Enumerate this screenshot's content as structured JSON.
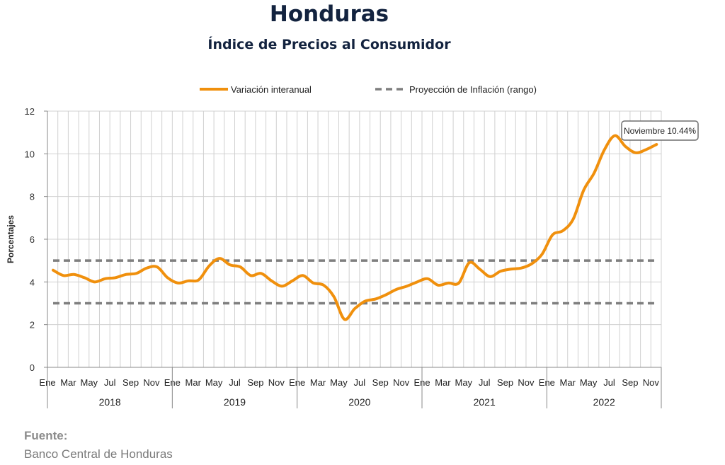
{
  "header": {
    "title": "Honduras",
    "subtitle": "Índice de Precios al Consumidor"
  },
  "source": {
    "label": "Fuente:",
    "text": "Banco Central de Honduras"
  },
  "colors": {
    "series": "#f0900d",
    "projection": "#7f7f7f",
    "grid": "#d0d0d0",
    "title": "#13233f"
  },
  "chart_data": {
    "type": "line",
    "ylabel": "Porcentajes",
    "ylim": [
      0,
      12
    ],
    "yticks": [
      0,
      2,
      4,
      6,
      8,
      10,
      12
    ],
    "grid": true,
    "legend_position": "top",
    "month_labels": [
      "Ene",
      "Mar",
      "May",
      "Jul",
      "Sep",
      "Nov"
    ],
    "years": [
      "2018",
      "2019",
      "2020",
      "2021",
      "2022"
    ],
    "series": [
      {
        "name": "Variación interanual",
        "color": "#f0900d",
        "values": [
          4.55,
          4.3,
          4.35,
          4.2,
          4.0,
          4.15,
          4.2,
          4.35,
          4.4,
          4.65,
          4.7,
          4.2,
          3.95,
          4.05,
          4.1,
          4.75,
          5.1,
          4.8,
          4.7,
          4.3,
          4.4,
          4.05,
          3.8,
          4.05,
          4.3,
          3.95,
          3.85,
          3.3,
          2.25,
          2.75,
          3.1,
          3.2,
          3.4,
          3.65,
          3.8,
          4.0,
          4.15,
          3.85,
          3.95,
          3.95,
          4.9,
          4.6,
          4.25,
          4.5,
          4.6,
          4.65,
          4.85,
          5.3,
          6.2,
          6.4,
          6.95,
          8.3,
          9.1,
          10.2,
          10.85,
          10.35,
          10.05,
          10.2,
          10.44
        ]
      },
      {
        "name": "Proyección de Inflación (rango)",
        "color": "#7f7f7f",
        "dashed": true,
        "upper": 5.0,
        "lower": 3.0
      }
    ],
    "annotation": {
      "text": "Noviembre 10.44%",
      "value": 10.44
    }
  }
}
